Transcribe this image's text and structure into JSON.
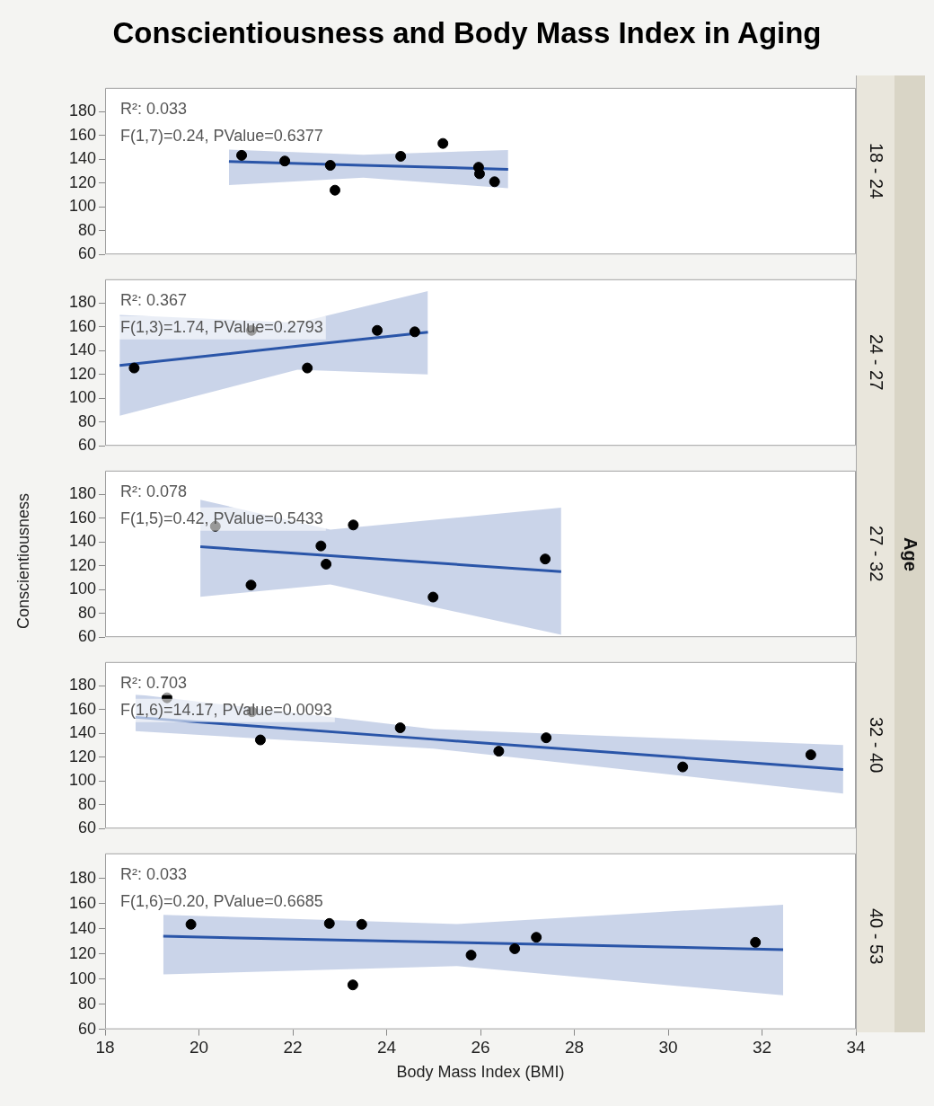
{
  "chart_data": [
    {
      "type": "scatter",
      "title": "Conscientiousness and Body Mass Index in Aging",
      "y2label": "18 - 24",
      "annotations": [
        "R²: 0.033",
        "F(1,7)=0.24, PValue=0.6377"
      ],
      "xlim": [
        18,
        34
      ],
      "xticks": [
        18,
        20,
        22,
        24,
        26,
        28,
        30,
        32,
        34
      ],
      "ylim": [
        60,
        200
      ],
      "yticks": [
        60,
        80,
        100,
        120,
        140,
        160,
        180
      ],
      "tick_labels": "y",
      "series": [
        {
          "marker": "circle",
          "color": "#000000",
          "x": [
            20.91,
            21.83,
            22.8,
            22.9,
            24.3,
            25.2,
            25.96,
            25.98,
            26.3
          ],
          "values": [
            143.3,
            138.5,
            134.9,
            114,
            142.5,
            153.3,
            133.3,
            127.8,
            121.1
          ]
        },
        {
          "type": "line",
          "marker": "none",
          "line_style": "solid",
          "color": "#2a55a8",
          "x": [
            20.64,
            23.5,
            26.59
          ],
          "values": [
            138.2,
            135.0,
            131.6
          ],
          "lower": [
            118.3,
            124.5,
            115.6
          ],
          "upper": [
            148.2,
            143.8,
            147.8
          ]
        }
      ]
    },
    {
      "type": "scatter",
      "y2label": "24 - 27",
      "annotations": [
        "R²: 0.367",
        "F(1,3)=1.74, PValue=0.2793"
      ],
      "xlim": [
        18,
        34
      ],
      "xticks": [
        18,
        20,
        22,
        24,
        26,
        28,
        30,
        32,
        34
      ],
      "ylim": [
        60,
        200
      ],
      "yticks": [
        60,
        80,
        100,
        120,
        140,
        160,
        180
      ],
      "tick_labels": "y",
      "series": [
        {
          "marker": "circle",
          "color": "#000000",
          "x": [
            18.62,
            21.12,
            22.31,
            23.8,
            24.6
          ],
          "values": [
            125.4,
            157,
            125.4,
            157,
            155.8
          ]
        },
        {
          "type": "line",
          "marker": "none",
          "line_style": "solid",
          "color": "#2a55a8",
          "x": [
            18.31,
            22.1,
            24.88
          ],
          "values": [
            127.6,
            143.7,
            155.4
          ],
          "lower": [
            85.3,
            123.9,
            120
          ],
          "upper": [
            170,
            163.5,
            190
          ]
        }
      ]
    },
    {
      "type": "scatter",
      "ylabel": "Conscientiousness",
      "y2label": "27 - 32",
      "annotations": [
        "R²: 0.078",
        "F(1,5)=0.42, PValue=0.5433",
        "Age"
      ],
      "xlim": [
        18,
        34
      ],
      "xticks": [
        18,
        20,
        22,
        24,
        26,
        28,
        30,
        32,
        34
      ],
      "ylim": [
        60,
        200
      ],
      "yticks": [
        60,
        80,
        100,
        120,
        140,
        160,
        180
      ],
      "tick_labels": "y",
      "series": [
        {
          "marker": "circle",
          "color": "#000000",
          "x": [
            20.35,
            21.11,
            22.6,
            22.71,
            23.29,
            24.99,
            27.38
          ],
          "values": [
            153.2,
            103.8,
            136.7,
            121.4,
            154.3,
            93.7,
            125.7
          ]
        },
        {
          "type": "line",
          "marker": "none",
          "line_style": "solid",
          "color": "#2a55a8",
          "x": [
            20.03,
            22.8,
            27.72
          ],
          "values": [
            136,
            128.5,
            115.1
          ],
          "lower": [
            94,
            104.3,
            62
          ],
          "upper": [
            175.5,
            150.3,
            168.9
          ]
        }
      ]
    },
    {
      "type": "scatter",
      "y2label": "32 - 40",
      "annotations": [
        "R²: 0.703",
        "F(1,6)=14.17, PValue=0.0093"
      ],
      "xlim": [
        18,
        34
      ],
      "xticks": [
        18,
        20,
        22,
        24,
        26,
        28,
        30,
        32,
        34
      ],
      "ylim": [
        60,
        200
      ],
      "yticks": [
        60,
        80,
        100,
        120,
        140,
        160,
        180
      ],
      "tick_labels": "y",
      "series": [
        {
          "marker": "circle",
          "color": "#000000",
          "x": [
            19.32,
            21.13,
            21.31,
            24.29,
            26.39,
            27.4,
            30.31,
            33.04
          ],
          "values": [
            169.9,
            158.2,
            134.5,
            144.7,
            125,
            136.3,
            111.8,
            122
          ]
        },
        {
          "type": "line",
          "marker": "none",
          "line_style": "solid",
          "color": "#2a55a8",
          "x": [
            18.65,
            25,
            33.73
          ],
          "values": [
            153.5,
            135,
            109.6
          ],
          "lower": [
            141.8,
            127.2,
            89.5
          ],
          "upper": [
            172.9,
            143.6,
            130.1
          ]
        }
      ]
    },
    {
      "type": "scatter",
      "xlabel": "Body Mass Index (BMI)",
      "y2label": "40 - 53",
      "annotations": [
        "R²: 0.033",
        "F(1,6)=0.20, PValue=0.6685"
      ],
      "xlim": [
        18,
        34
      ],
      "xticks": [
        18,
        20,
        22,
        24,
        26,
        28,
        30,
        32,
        34
      ],
      "ylim": [
        60,
        200
      ],
      "yticks": [
        60,
        80,
        100,
        120,
        140,
        160,
        180
      ],
      "series": [
        {
          "marker": "circle",
          "color": "#000000",
          "x": [
            19.83,
            22.78,
            23.28,
            23.47,
            25.8,
            26.73,
            27.19,
            31.86
          ],
          "values": [
            143.5,
            144.2,
            95.3,
            143.5,
            119,
            124.1,
            133.2,
            129.2
          ]
        },
        {
          "type": "line",
          "marker": "none",
          "line_style": "solid",
          "color": "#2a55a8",
          "x": [
            19.24,
            25.5,
            32.45
          ],
          "values": [
            134,
            129,
            123.4
          ],
          "lower": [
            103.7,
            110.3,
            87
          ],
          "upper": [
            151.1,
            143.8,
            159.1
          ]
        }
      ]
    }
  ]
}
